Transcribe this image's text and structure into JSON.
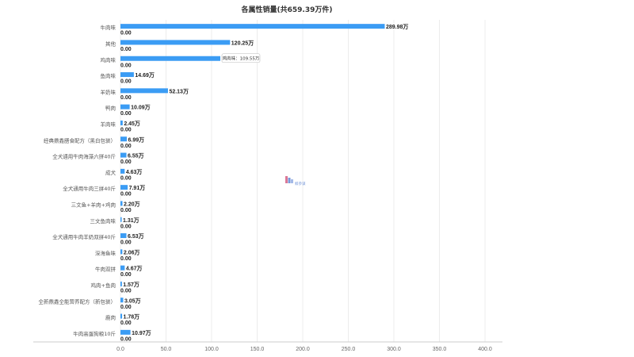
{
  "chart_data": {
    "type": "bar",
    "orientation": "horizontal",
    "title": "各属性销量(共659.39万件)",
    "categories": [
      "牛肉味",
      "其他",
      "鸡肉味",
      "鱼肉味",
      "羊奶味",
      "鸭肉",
      "羊肉味",
      "经典鼎鑫膳食配方（黑白包装）",
      "全犬通用牛肉海藻六拼40斤",
      "成犬",
      "全犬通用牛肉三拼40斤",
      "三文鱼+羊肉+鸡肉",
      "三文鱼肉味",
      "全犬通用牛肉羊奶双拼40斤",
      "深海鱼味",
      "牛肉双拼",
      "鸡肉+鱼肉",
      "全新鼎鑫全能营养配方（新包装）",
      "鹿肉",
      "牛肉高蛋狗粮10斤"
    ],
    "series": [
      {
        "values": [
          289.98,
          120.25,
          109.55,
          14.69,
          52.13,
          10.09,
          2.45,
          6.99,
          6.55,
          4.63,
          7.91,
          2.2,
          1.31,
          6.53,
          2.06,
          4.67,
          1.57,
          3.05,
          1.78,
          10.97
        ],
        "labels": [
          "289.98万",
          "120.25万",
          "",
          "14.69万",
          "52.13万",
          "10.09万",
          "2.45万",
          "6.99万",
          "6.55万",
          "4.63万",
          "7.91万",
          "2.20万",
          "1.31万",
          "6.53万",
          "2.06万",
          "4.67万",
          "1.57万",
          "3.05万",
          "1.78万",
          "10.97万"
        ],
        "color": "#3b9cf4"
      },
      {
        "values": [
          0,
          0,
          0,
          0,
          0,
          0,
          0,
          0,
          0,
          0,
          0,
          0,
          0,
          0,
          0,
          0,
          0,
          0,
          0,
          0
        ],
        "labels": [
          "0.00",
          "0.00",
          "0.00",
          "0.00",
          "0.00",
          "0.00",
          "0.00",
          "0.00",
          "0.00",
          "0.00",
          "0.00",
          "0.00",
          "0.00",
          "0.00",
          "0.00",
          "0.00",
          "0.00",
          "0.00",
          "0.00",
          "0.00"
        ],
        "color": "#2f5fa8"
      }
    ],
    "xlim": [
      0,
      400
    ],
    "xticks": [
      "0.0",
      "50.0",
      "100.0",
      "150.0",
      "200.0",
      "250.0",
      "300.0",
      "350.0",
      "400.0"
    ],
    "grid": true,
    "tooltip": {
      "category_index": 2,
      "text": "鸡肉味：109.55万"
    }
  },
  "watermark": {
    "text": "鲸参谋",
    "color": "#6b8fd6"
  }
}
